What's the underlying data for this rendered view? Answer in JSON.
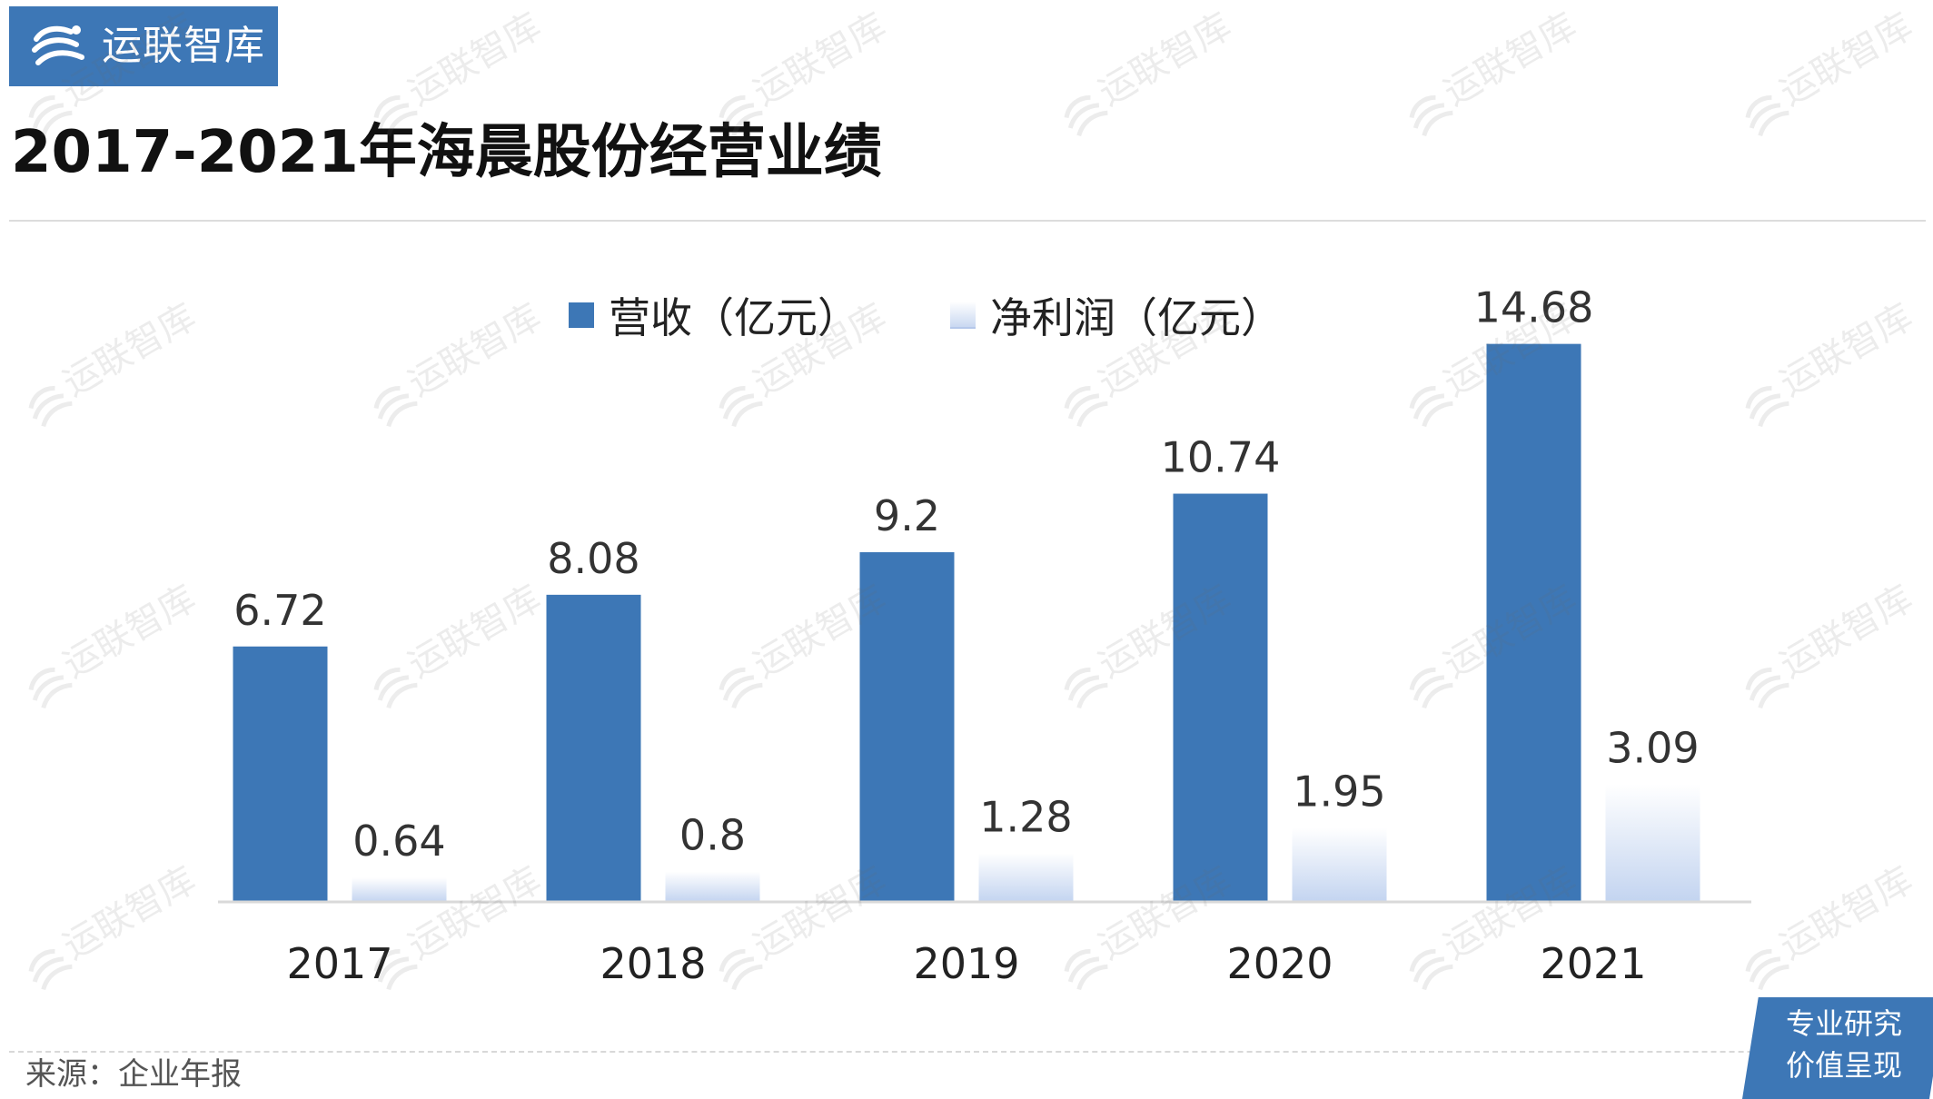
{
  "brand": {
    "name": "运联智库",
    "color": "#3d77b6"
  },
  "title": "2017-2021年海晨股份经营业绩",
  "legend": {
    "revenue": "营收（亿元）",
    "profit": "净利润（亿元）"
  },
  "source": "来源：企业年报",
  "badge": {
    "line1": "专业研究",
    "line2": "价值呈现"
  },
  "watermark": "运联智库",
  "chart_data": {
    "type": "bar",
    "title": "2017-2021年海晨股份经营业绩",
    "categories": [
      "2017",
      "2018",
      "2019",
      "2020",
      "2021"
    ],
    "series": [
      {
        "name": "营收（亿元）",
        "values": [
          6.72,
          8.08,
          9.2,
          10.74,
          14.68
        ],
        "color": "#3d77b6"
      },
      {
        "name": "净利润（亿元）",
        "values": [
          0.64,
          0.8,
          1.28,
          1.95,
          3.09
        ],
        "color": "#c9d8f1"
      }
    ],
    "value_labels": {
      "revenue": [
        "6.72",
        "8.08",
        "9.2",
        "10.74",
        "14.68"
      ],
      "profit": [
        "0.64",
        "0.8",
        "1.28",
        "1.95",
        "3.09"
      ]
    },
    "xlabel": "",
    "ylabel": "",
    "ylim": [
      0,
      15.5
    ],
    "grid": false,
    "legend_position": "top"
  }
}
